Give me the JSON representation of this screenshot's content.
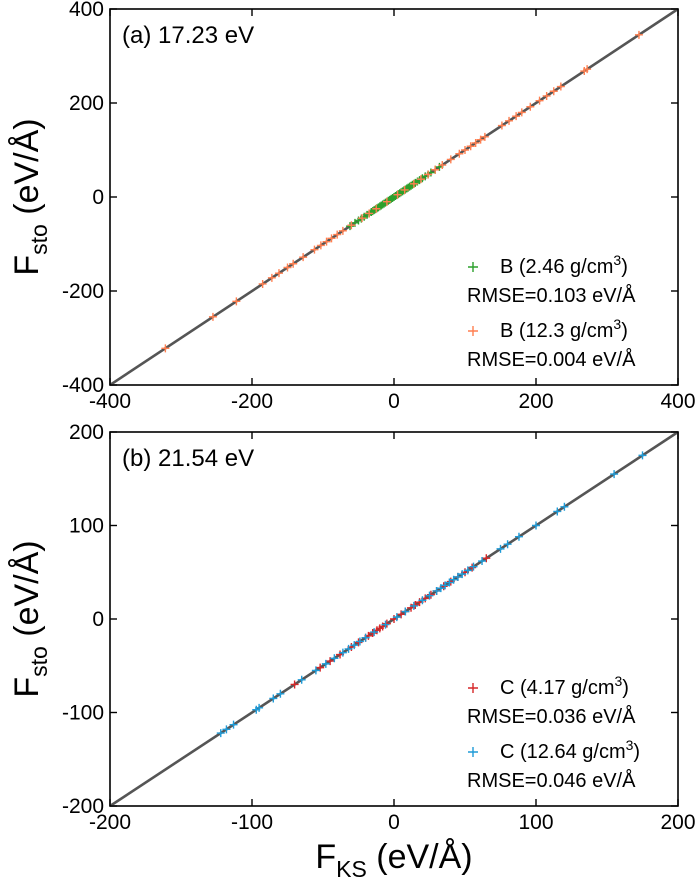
{
  "chart_data": [
    {
      "type": "scatter",
      "title": "(a) 17.23 eV",
      "xlabel": "",
      "ylabel_main": "F",
      "ylabel_sub": "sto",
      "ylabel_unit": "(eV/Å)",
      "xlim": [
        -400,
        400
      ],
      "ylim": [
        -400,
        400
      ],
      "xticks": [
        "-400",
        "-200",
        "0",
        "200",
        "400"
      ],
      "yticks": [
        "-400",
        "-200",
        "0",
        "200",
        "400"
      ],
      "legend_position": "bottom-right",
      "reference_line": "y = x",
      "series": [
        {
          "name_prefix": "B (2.46 g/cm",
          "name_sup": "3",
          "name_suffix": ")",
          "rmse": "RMSE=0.103 eV/Å",
          "color": "#2ca02c",
          "x": [
            -62,
            -55,
            -50,
            -46,
            -42,
            -38,
            -35,
            -32,
            -30,
            -28,
            -26,
            -24,
            -22,
            -20,
            -18,
            -16,
            -14,
            -12,
            -10,
            -8,
            -6,
            -4,
            -2,
            0,
            2,
            4,
            6,
            8,
            10,
            12,
            14,
            16,
            18,
            20,
            22,
            24,
            26,
            28,
            30,
            33,
            36,
            40,
            44,
            48,
            52,
            58,
            64
          ],
          "y": [
            -62,
            -55,
            -50,
            -46,
            -42,
            -38,
            -35,
            -32,
            -30,
            -28,
            -26,
            -24,
            -22,
            -20,
            -18,
            -16,
            -14,
            -12,
            -10,
            -8,
            -6,
            -4,
            -2,
            0,
            2,
            4,
            6,
            8,
            10,
            12,
            14,
            16,
            18,
            20,
            22,
            24,
            26,
            28,
            30,
            33,
            36,
            40,
            44,
            48,
            52,
            58,
            64
          ]
        },
        {
          "name_prefix": "B (12.3 g/cm",
          "name_sup": "3",
          "name_suffix": ")",
          "rmse": "RMSE=0.004 eV/Å",
          "color": "#ff7f50",
          "x": [
            -322,
            -255,
            -222,
            -185,
            -172,
            -162,
            -150,
            -142,
            -128,
            -112,
            -103,
            -95,
            -88,
            -80,
            -72,
            -60,
            -45,
            -35,
            -25,
            -10,
            5,
            15,
            28,
            38,
            48,
            58,
            68,
            80,
            92,
            100,
            108,
            115,
            122,
            128,
            152,
            162,
            172,
            180,
            192,
            205,
            215,
            225,
            235,
            268,
            272,
            345
          ],
          "y": [
            -322,
            -255,
            -222,
            -185,
            -172,
            -162,
            -150,
            -142,
            -128,
            -112,
            -103,
            -95,
            -88,
            -80,
            -72,
            -60,
            -45,
            -35,
            -25,
            -10,
            5,
            15,
            28,
            38,
            48,
            58,
            68,
            80,
            92,
            100,
            108,
            115,
            122,
            128,
            152,
            162,
            172,
            180,
            192,
            205,
            215,
            225,
            235,
            268,
            272,
            345
          ]
        }
      ]
    },
    {
      "type": "scatter",
      "title": "(b) 21.54 eV",
      "xlabel_main": "F",
      "xlabel_sub": "KS",
      "xlabel_unit": "(eV/Å)",
      "ylabel_main": "F",
      "ylabel_sub": "sto",
      "ylabel_unit": "(eV/Å)",
      "xlim": [
        -200,
        200
      ],
      "ylim": [
        -200,
        200
      ],
      "xticks": [
        "-200",
        "-100",
        "0",
        "100",
        "200"
      ],
      "yticks": [
        "-200",
        "-100",
        "0",
        "100",
        "200"
      ],
      "legend_position": "bottom-right",
      "reference_line": "y = x",
      "series": [
        {
          "name_prefix": "C (4.17 g/cm",
          "name_sup": "3",
          "name_suffix": ")",
          "rmse": "RMSE=0.036 eV/Å",
          "color": "#d62728",
          "x": [
            -70,
            -52,
            -45,
            -38,
            -30,
            -25,
            -20,
            -18,
            -15,
            -12,
            -10,
            -8,
            -5,
            0,
            5,
            8,
            12,
            15,
            18,
            22,
            26,
            30,
            35,
            40,
            45,
            50,
            55,
            65
          ],
          "y": [
            -70,
            -52,
            -45,
            -38,
            -30,
            -25,
            -20,
            -18,
            -15,
            -12,
            -10,
            -8,
            -5,
            0,
            5,
            8,
            12,
            15,
            18,
            22,
            26,
            30,
            35,
            40,
            45,
            50,
            55,
            65
          ]
        },
        {
          "name_prefix": "C (12.64 g/cm",
          "name_sup": "3",
          "name_suffix": ")",
          "rmse": "RMSE=0.046 eV/Å",
          "color": "#1f9bd7",
          "x": [
            -122,
            -118,
            -113,
            -97,
            -95,
            -85,
            -80,
            -65,
            -55,
            -48,
            -42,
            -36,
            -32,
            -28,
            -24,
            -20,
            -14,
            -6,
            2,
            8,
            14,
            20,
            25,
            30,
            33,
            36,
            39,
            42,
            45,
            48,
            52,
            56,
            62,
            75,
            80,
            88,
            100,
            115,
            120,
            155,
            175
          ],
          "y": [
            -122,
            -118,
            -113,
            -97,
            -95,
            -85,
            -80,
            -65,
            -55,
            -48,
            -42,
            -36,
            -32,
            -28,
            -24,
            -20,
            -14,
            -6,
            2,
            8,
            14,
            20,
            25,
            30,
            33,
            36,
            39,
            42,
            45,
            48,
            52,
            56,
            62,
            75,
            80,
            88,
            100,
            115,
            120,
            155,
            175
          ]
        }
      ]
    }
  ]
}
